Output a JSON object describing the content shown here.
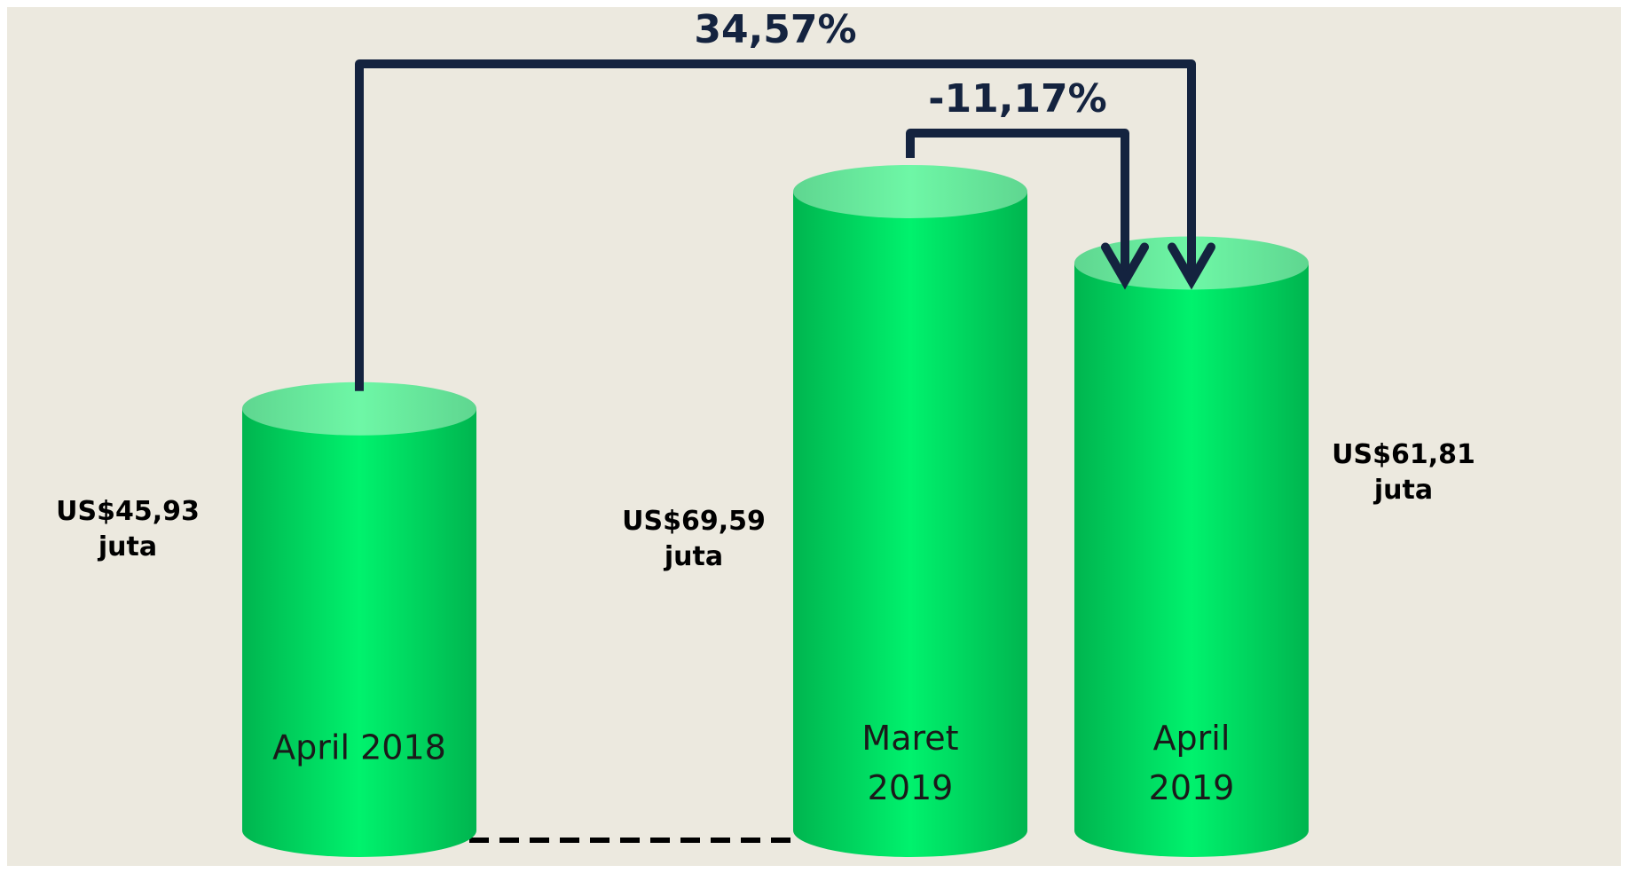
{
  "chart_data": {
    "type": "bar",
    "categories": [
      "April 2018",
      "Maret 2019",
      "April 2019"
    ],
    "values": [
      45.93,
      69.59,
      61.81
    ],
    "value_labels": [
      "US$45,93 juta",
      "US$69,59 juta",
      "US$61,81 juta"
    ],
    "color": "#00d060",
    "ylim": [
      0,
      75
    ],
    "annotations": [
      {
        "text": "34,57%",
        "from": 0,
        "to": 2
      },
      {
        "text": "-11,17%",
        "from": 1,
        "to": 2
      }
    ]
  }
}
